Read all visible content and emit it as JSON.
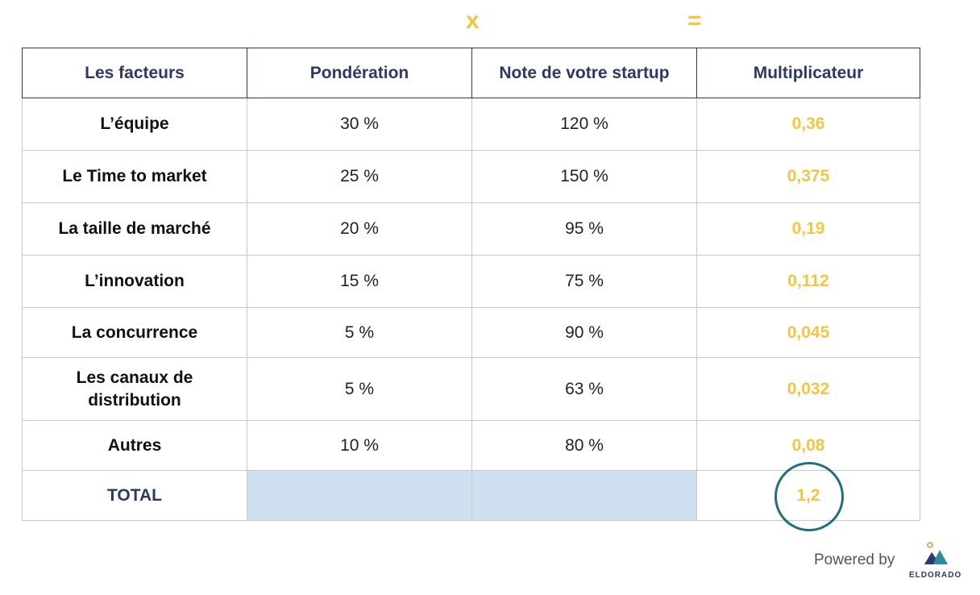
{
  "operators": {
    "multiply": "x",
    "equals": "="
  },
  "table": {
    "headers": [
      "Les facteurs",
      "Pondération",
      "Note de votre startup",
      "Multiplicateur"
    ],
    "rows": [
      {
        "factor": "L’équipe",
        "weight": "30 %",
        "score": "120 %",
        "multiplier": "0,36"
      },
      {
        "factor": "Le Time to market",
        "weight": "25 %",
        "score": "150 %",
        "multiplier": "0,375"
      },
      {
        "factor": "La taille de marché",
        "weight": "20 %",
        "score": "95 %",
        "multiplier": "0,19"
      },
      {
        "factor": "L’innovation",
        "weight": "15 %",
        "score": "75 %",
        "multiplier": "0,112"
      },
      {
        "factor": "La concurrence",
        "weight": "5 %",
        "score": "90 %",
        "multiplier": "0,045"
      },
      {
        "factor": "Les canaux de distribution",
        "weight": "5 %",
        "score": "63 %",
        "multiplier": "0,032"
      },
      {
        "factor": "Autres",
        "weight": "10 %",
        "score": "80 %",
        "multiplier": "0,08"
      }
    ],
    "total": {
      "label": "TOTAL",
      "multiplier": "1,2"
    }
  },
  "footer": {
    "powered_by": "Powered by",
    "brand": "ELDORADO"
  },
  "colors": {
    "accent_yellow": "#f5c542",
    "navy": "#2c3a63",
    "teal_circle": "#1f6f7f",
    "total_fill": "#cfe1f1"
  }
}
